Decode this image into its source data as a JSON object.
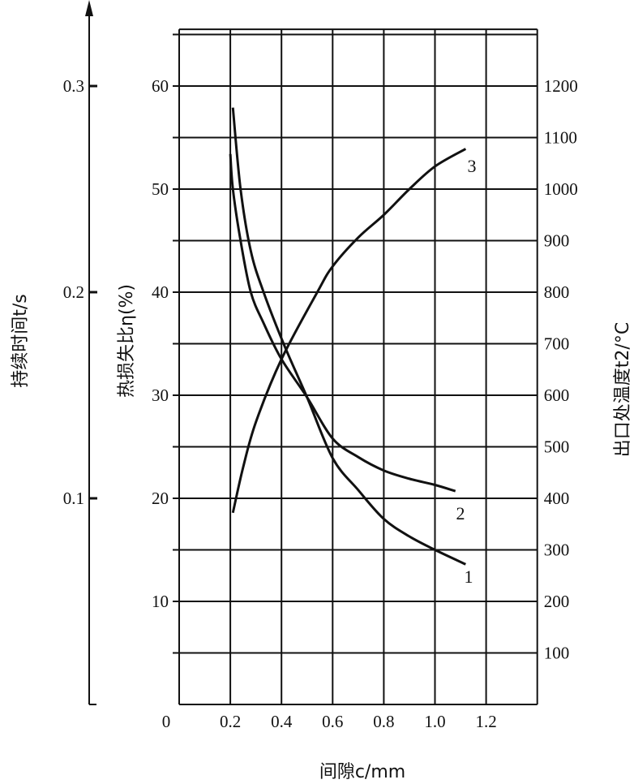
{
  "chart_data": {
    "type": "line",
    "xlabel": "间隙c/mm",
    "ylabel_left": "热损失比η(%)",
    "ylabel_far_left": "持续时间t/s",
    "ylabel_right": "出口处温度t2/°C",
    "xlim": [
      0,
      1.4
    ],
    "ylim": [
      0,
      65.5
    ],
    "x_ticks": [
      "0",
      "0.2",
      "0.4",
      "0.6",
      "0.8",
      "1.0",
      "1.2"
    ],
    "x_tick_values": [
      0,
      0.2,
      0.4,
      0.6,
      0.8,
      1.0,
      1.2
    ],
    "y_ticks": [
      10,
      20,
      30,
      40,
      50,
      60
    ],
    "far_left_ticks": [
      "0.1",
      "0.2",
      "0.3"
    ],
    "far_left_tick_values": [
      0.1,
      0.2,
      0.3
    ],
    "right_ticks": [
      100,
      200,
      300,
      400,
      500,
      600,
      700,
      800,
      900,
      1000,
      1100,
      1200
    ],
    "grid": true,
    "series": [
      {
        "name": "1",
        "points": [
          [
            0.21,
            57.9
          ],
          [
            0.24,
            50
          ],
          [
            0.28,
            44
          ],
          [
            0.33,
            40
          ],
          [
            0.41,
            34.9
          ],
          [
            0.5,
            29.8
          ],
          [
            0.6,
            23.9
          ],
          [
            0.7,
            20.8
          ],
          [
            0.8,
            18
          ],
          [
            0.9,
            16.3
          ],
          [
            1.0,
            15
          ],
          [
            1.12,
            13.6
          ]
        ]
      },
      {
        "name": "2",
        "points": [
          [
            0.2,
            53.4
          ],
          [
            0.21,
            50
          ],
          [
            0.24,
            45
          ],
          [
            0.28,
            40
          ],
          [
            0.33,
            37
          ],
          [
            0.4,
            33.5
          ],
          [
            0.5,
            29.8
          ],
          [
            0.6,
            25.8
          ],
          [
            0.7,
            24
          ],
          [
            0.8,
            22.7
          ],
          [
            0.9,
            21.9
          ],
          [
            1.0,
            21.3
          ],
          [
            1.08,
            20.7
          ]
        ]
      },
      {
        "name": "3",
        "points": [
          [
            0.21,
            18.6
          ],
          [
            0.25,
            23
          ],
          [
            0.3,
            27.4
          ],
          [
            0.4,
            33.5
          ],
          [
            0.54,
            40
          ],
          [
            0.6,
            42.5
          ],
          [
            0.7,
            45.3
          ],
          [
            0.8,
            47.5
          ],
          [
            0.9,
            50
          ],
          [
            1.0,
            52.2
          ],
          [
            1.12,
            53.9
          ]
        ]
      }
    ]
  }
}
